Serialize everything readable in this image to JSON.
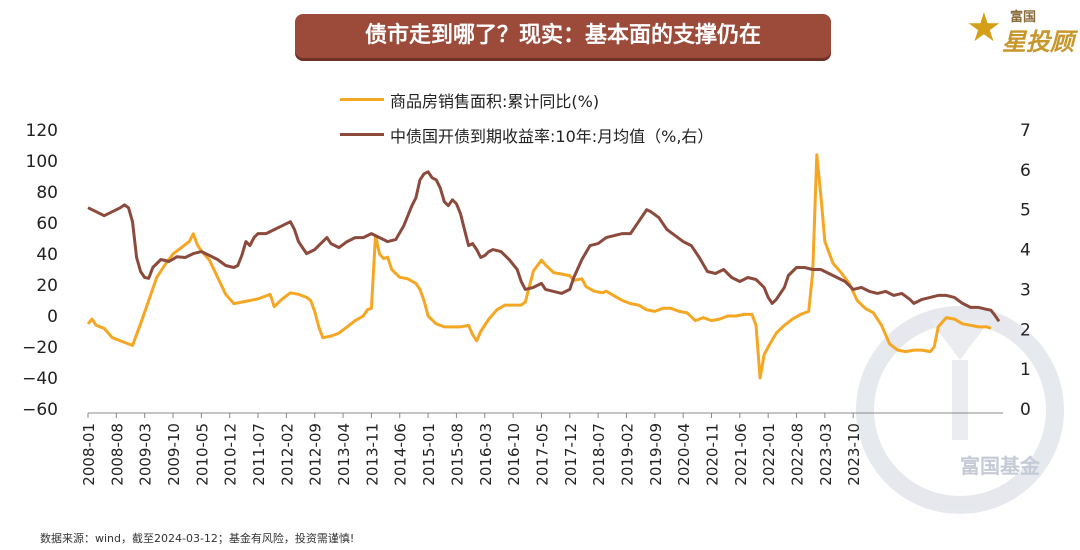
{
  "title": "债市走到哪了？现实：基本面的支撑仍在",
  "logo": {
    "small": "富国",
    "main": "星投顾"
  },
  "watermark": "富国基金",
  "footer": "数据来源：wind，截至2024-03-12；基金有风险，投资需谨慎!",
  "colors": {
    "sales": "#f5a623",
    "yield": "#8b4a3c",
    "banner": "#9c4a3a"
  },
  "chart_data": {
    "type": "line",
    "title": "债市走到哪了？现实：基本面的支撑仍在",
    "x_tick_labels": [
      "2008-01",
      "2008-08",
      "2009-03",
      "2009-10",
      "2010-05",
      "2010-12",
      "2011-07",
      "2012-02",
      "2012-09",
      "2013-04",
      "2013-11",
      "2014-06",
      "2015-01",
      "2015-08",
      "2016-03",
      "2016-10",
      "2017-05",
      "2017-12",
      "2018-07",
      "2019-02",
      "2019-09",
      "2020-04",
      "2020-11",
      "2021-06",
      "2022-01",
      "2022-08",
      "2023-03",
      "2023-10"
    ],
    "y_left": {
      "range": [
        -60,
        120
      ],
      "ticks": [
        "120",
        "100",
        "80",
        "60",
        "40",
        "20",
        "0",
        "−20",
        "−40",
        "−60"
      ]
    },
    "y_right": {
      "range": [
        0,
        7
      ],
      "ticks": [
        "7",
        "6",
        "5",
        "4",
        "3",
        "2",
        "1",
        "0"
      ]
    },
    "series": [
      {
        "name": "商品房销售面积:累计同比(%)",
        "axis": "left",
        "points": [
          [
            0,
            -5
          ],
          [
            1,
            -2
          ],
          [
            2,
            -6
          ],
          [
            4,
            -8
          ],
          [
            6,
            -14
          ],
          [
            9,
            -17
          ],
          [
            11,
            -19
          ],
          [
            13,
            -5
          ],
          [
            15,
            10
          ],
          [
            17,
            25
          ],
          [
            19,
            33
          ],
          [
            21,
            40
          ],
          [
            23,
            44
          ],
          [
            25,
            48
          ],
          [
            26,
            53
          ],
          [
            27,
            46
          ],
          [
            28,
            42
          ],
          [
            30,
            36
          ],
          [
            32,
            25
          ],
          [
            34,
            14
          ],
          [
            36,
            8
          ],
          [
            38,
            9
          ],
          [
            40,
            10
          ],
          [
            42,
            11
          ],
          [
            44,
            13
          ],
          [
            45,
            14
          ],
          [
            46,
            6
          ],
          [
            48,
            11
          ],
          [
            50,
            15
          ],
          [
            52,
            14
          ],
          [
            54,
            12
          ],
          [
            55,
            10
          ],
          [
            56,
            3
          ],
          [
            57,
            -7
          ],
          [
            58,
            -14
          ],
          [
            60,
            -13
          ],
          [
            62,
            -11
          ],
          [
            64,
            -7
          ],
          [
            66,
            -3
          ],
          [
            68,
            0
          ],
          [
            69,
            4
          ],
          [
            70,
            5
          ],
          [
            71,
            52
          ],
          [
            72,
            40
          ],
          [
            73,
            37
          ],
          [
            74,
            38
          ],
          [
            75,
            30
          ],
          [
            77,
            25
          ],
          [
            79,
            24
          ],
          [
            81,
            21
          ],
          [
            82,
            17
          ],
          [
            83,
            10
          ],
          [
            84,
            0
          ],
          [
            86,
            -5
          ],
          [
            88,
            -7
          ],
          [
            90,
            -7
          ],
          [
            92,
            -7
          ],
          [
            94,
            -6
          ],
          [
            95,
            -12
          ],
          [
            96,
            -16
          ],
          [
            97,
            -10
          ],
          [
            99,
            -2
          ],
          [
            101,
            4
          ],
          [
            103,
            7
          ],
          [
            105,
            7
          ],
          [
            107,
            7
          ],
          [
            108,
            9
          ],
          [
            110,
            29
          ],
          [
            112,
            36
          ],
          [
            113,
            33
          ],
          [
            115,
            28
          ],
          [
            117,
            27
          ],
          [
            119,
            26
          ],
          [
            120,
            23
          ],
          [
            122,
            24
          ],
          [
            123,
            19
          ],
          [
            125,
            16
          ],
          [
            127,
            15
          ],
          [
            128,
            16
          ],
          [
            130,
            13
          ],
          [
            132,
            10
          ],
          [
            134,
            8
          ],
          [
            136,
            7
          ],
          [
            138,
            4
          ],
          [
            140,
            3
          ],
          [
            142,
            5
          ],
          [
            144,
            5
          ],
          [
            146,
            3
          ],
          [
            148,
            2
          ],
          [
            150,
            -3
          ],
          [
            152,
            -1
          ],
          [
            154,
            -3
          ],
          [
            156,
            -2
          ],
          [
            158,
            0
          ],
          [
            160,
            0
          ],
          [
            162,
            1
          ],
          [
            164,
            1
          ],
          [
            165,
            -6
          ],
          [
            166,
            -40
          ],
          [
            167,
            -25
          ],
          [
            168,
            -20
          ],
          [
            170,
            -11
          ],
          [
            172,
            -6
          ],
          [
            174,
            -2
          ],
          [
            176,
            1
          ],
          [
            178,
            3
          ],
          [
            179,
            28
          ],
          [
            180,
            104
          ],
          [
            181,
            78
          ],
          [
            182,
            48
          ],
          [
            184,
            34
          ],
          [
            186,
            28
          ],
          [
            188,
            21
          ],
          [
            190,
            10
          ],
          [
            192,
            5
          ],
          [
            194,
            2
          ],
          [
            196,
            -6
          ],
          [
            198,
            -18
          ],
          [
            200,
            -22
          ],
          [
            202,
            -23
          ],
          [
            204,
            -22
          ],
          [
            206,
            -22
          ],
          [
            208,
            -23
          ],
          [
            209,
            -20
          ],
          [
            210,
            -7
          ],
          [
            212,
            -1
          ],
          [
            214,
            -2
          ],
          [
            216,
            -5
          ],
          [
            218,
            -6
          ],
          [
            220,
            -7
          ],
          [
            222,
            -7
          ],
          [
            223,
            -8
          ]
        ]
      },
      {
        "name": "中债国开债到期收益率:10年:月均值（%,右）",
        "axis": "right",
        "points": [
          [
            0,
            5.05
          ],
          [
            2,
            4.95
          ],
          [
            4,
            4.85
          ],
          [
            6,
            4.95
          ],
          [
            8,
            5.05
          ],
          [
            9,
            5.12
          ],
          [
            10,
            5.05
          ],
          [
            11,
            4.7
          ],
          [
            12,
            3.8
          ],
          [
            13,
            3.45
          ],
          [
            14,
            3.3
          ],
          [
            15,
            3.28
          ],
          [
            16,
            3.55
          ],
          [
            18,
            3.75
          ],
          [
            20,
            3.7
          ],
          [
            22,
            3.82
          ],
          [
            24,
            3.8
          ],
          [
            26,
            3.9
          ],
          [
            28,
            3.95
          ],
          [
            30,
            3.85
          ],
          [
            32,
            3.75
          ],
          [
            34,
            3.6
          ],
          [
            36,
            3.55
          ],
          [
            37,
            3.6
          ],
          [
            38,
            3.85
          ],
          [
            39,
            4.2
          ],
          [
            40,
            4.1
          ],
          [
            41,
            4.3
          ],
          [
            42,
            4.4
          ],
          [
            44,
            4.4
          ],
          [
            46,
            4.5
          ],
          [
            48,
            4.6
          ],
          [
            50,
            4.7
          ],
          [
            51,
            4.5
          ],
          [
            52,
            4.2
          ],
          [
            54,
            3.9
          ],
          [
            56,
            4.0
          ],
          [
            58,
            4.2
          ],
          [
            59,
            4.3
          ],
          [
            60,
            4.15
          ],
          [
            62,
            4.05
          ],
          [
            64,
            4.2
          ],
          [
            66,
            4.3
          ],
          [
            68,
            4.3
          ],
          [
            70,
            4.4
          ],
          [
            72,
            4.3
          ],
          [
            74,
            4.2
          ],
          [
            76,
            4.25
          ],
          [
            78,
            4.6
          ],
          [
            80,
            5.1
          ],
          [
            81,
            5.3
          ],
          [
            82,
            5.75
          ],
          [
            83,
            5.9
          ],
          [
            84,
            5.95
          ],
          [
            85,
            5.8
          ],
          [
            86,
            5.75
          ],
          [
            87,
            5.55
          ],
          [
            88,
            5.2
          ],
          [
            89,
            5.1
          ],
          [
            90,
            5.25
          ],
          [
            91,
            5.15
          ],
          [
            92,
            4.9
          ],
          [
            93,
            4.5
          ],
          [
            94,
            4.1
          ],
          [
            95,
            4.15
          ],
          [
            96,
            4.0
          ],
          [
            97,
            3.8
          ],
          [
            98,
            3.85
          ],
          [
            99,
            3.95
          ],
          [
            100,
            4.0
          ],
          [
            102,
            3.95
          ],
          [
            104,
            3.75
          ],
          [
            106,
            3.5
          ],
          [
            107,
            3.2
          ],
          [
            108,
            3.0
          ],
          [
            110,
            3.05
          ],
          [
            112,
            3.15
          ],
          [
            113,
            3.0
          ],
          [
            115,
            2.95
          ],
          [
            117,
            2.9
          ],
          [
            119,
            3.0
          ],
          [
            120,
            3.3
          ],
          [
            122,
            3.75
          ],
          [
            124,
            4.1
          ],
          [
            126,
            4.15
          ],
          [
            128,
            4.3
          ],
          [
            130,
            4.35
          ],
          [
            132,
            4.4
          ],
          [
            134,
            4.4
          ],
          [
            136,
            4.7
          ],
          [
            138,
            5.0
          ],
          [
            139,
            4.95
          ],
          [
            141,
            4.8
          ],
          [
            143,
            4.5
          ],
          [
            145,
            4.35
          ],
          [
            147,
            4.2
          ],
          [
            149,
            4.1
          ],
          [
            151,
            3.8
          ],
          [
            153,
            3.45
          ],
          [
            155,
            3.4
          ],
          [
            157,
            3.5
          ],
          [
            159,
            3.3
          ],
          [
            161,
            3.2
          ],
          [
            163,
            3.3
          ],
          [
            165,
            3.25
          ],
          [
            167,
            3.05
          ],
          [
            168,
            2.8
          ],
          [
            169,
            2.65
          ],
          [
            170,
            2.75
          ],
          [
            172,
            3.05
          ],
          [
            173,
            3.35
          ],
          [
            175,
            3.55
          ],
          [
            177,
            3.55
          ],
          [
            179,
            3.5
          ],
          [
            181,
            3.5
          ],
          [
            183,
            3.4
          ],
          [
            185,
            3.3
          ],
          [
            187,
            3.2
          ],
          [
            189,
            3.0
          ],
          [
            191,
            3.05
          ],
          [
            193,
            2.95
          ],
          [
            195,
            2.9
          ],
          [
            197,
            2.95
          ],
          [
            199,
            2.85
          ],
          [
            201,
            2.9
          ],
          [
            203,
            2.75
          ],
          [
            204,
            2.65
          ],
          [
            206,
            2.75
          ],
          [
            208,
            2.8
          ],
          [
            210,
            2.85
          ],
          [
            212,
            2.85
          ],
          [
            214,
            2.8
          ],
          [
            216,
            2.65
          ],
          [
            218,
            2.55
          ],
          [
            220,
            2.55
          ],
          [
            222,
            2.5
          ],
          [
            223,
            2.48
          ],
          [
            224,
            2.35
          ],
          [
            225,
            2.2
          ]
        ]
      }
    ],
    "legend": [
      "商品房销售面积:累计同比(%)",
      "中债国开债到期收益率:10年:月均值（%,右）"
    ],
    "legend_position": "top-center",
    "grid": false
  }
}
